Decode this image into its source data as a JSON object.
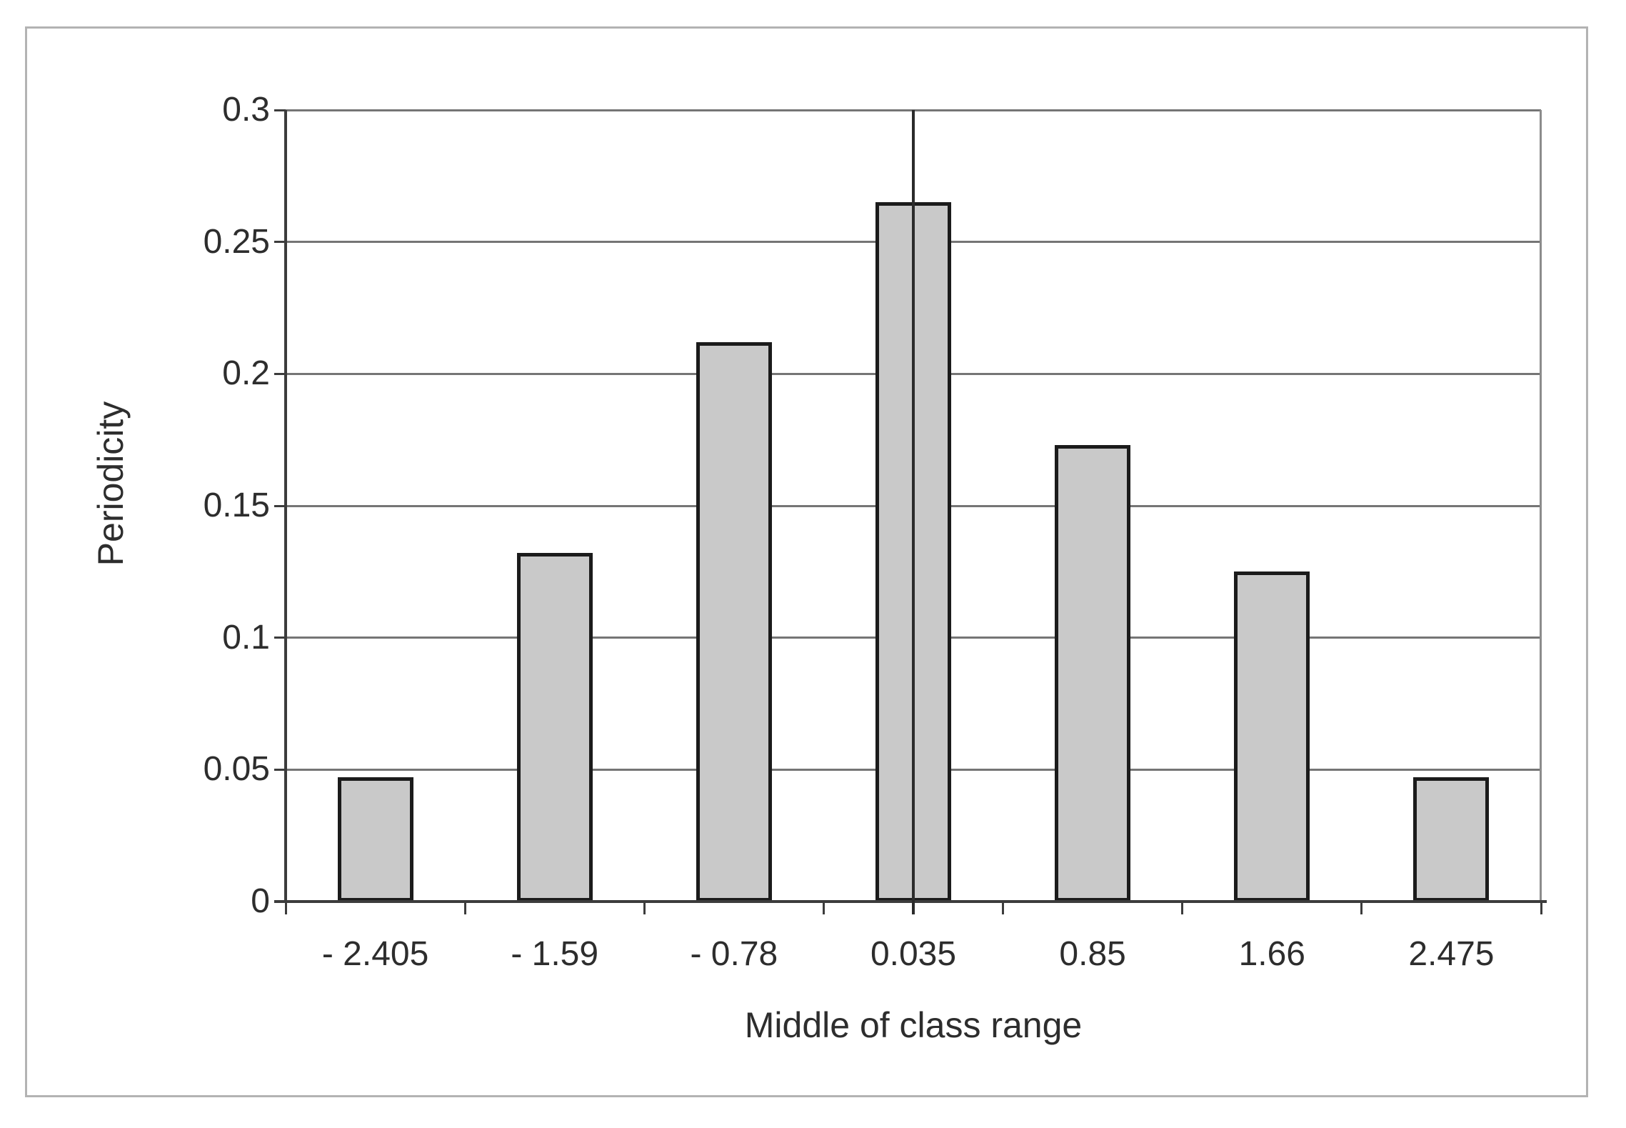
{
  "chart_data": {
    "type": "bar",
    "title": "",
    "xlabel": "Middle of class range",
    "ylabel": "Periodicity",
    "categories": [
      "- 2.405",
      "- 1.59",
      "- 0.78",
      "0.035",
      "0.85",
      "1.66",
      "2.475"
    ],
    "values": [
      0.047,
      0.132,
      0.212,
      0.265,
      0.173,
      0.125,
      0.047
    ],
    "ylim": [
      0,
      0.3
    ],
    "yticks": [
      0,
      0.05,
      0.1,
      0.15,
      0.2,
      0.25,
      0.3
    ],
    "ytick_labels": [
      "0",
      "0.05",
      "0.1",
      "0.15",
      "0.2",
      "0.25",
      "0.3"
    ],
    "grid": true,
    "legend": false,
    "annotations": [
      {
        "type": "vline",
        "x_category": "0.035",
        "category_index": 3
      }
    ],
    "colors": {
      "bar_fill": "#c9c9c9",
      "bar_border": "#1b1b1b",
      "gridline": "#757575",
      "right_frame": "#8c8c8c",
      "axis": "#3c3c3c",
      "annotation_line": "#2b2b2b",
      "text": "#2d2d2d",
      "outer_frame": "#b3b3b3"
    }
  }
}
